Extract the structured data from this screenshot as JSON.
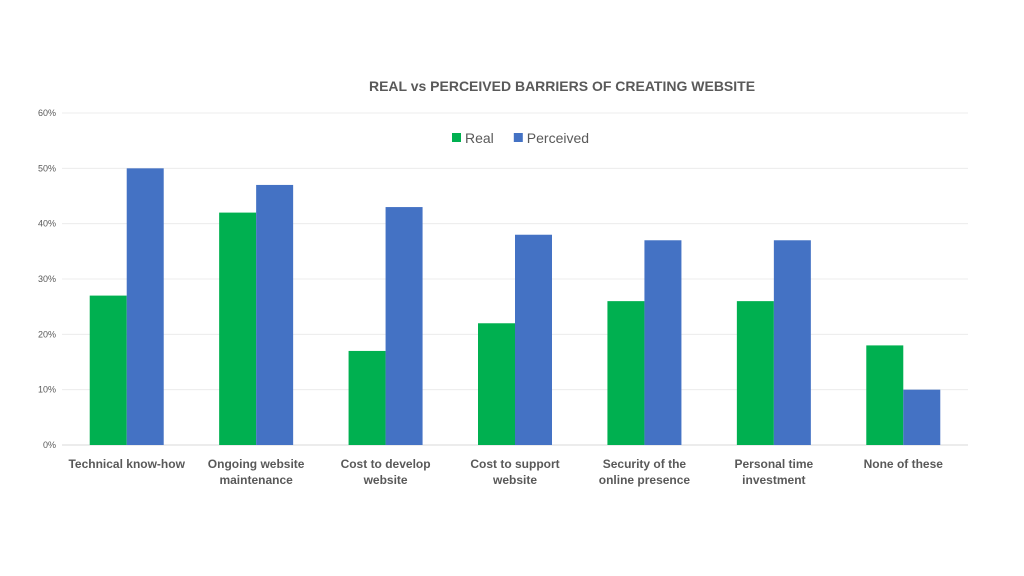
{
  "chart_data": {
    "type": "bar",
    "title": "REAL vs PERCEIVED BARRIERS OF CREATING WEBSITE",
    "xlabel": "",
    "ylabel": "",
    "ylim": [
      0,
      60
    ],
    "yticks": [
      "0%",
      "10%",
      "20%",
      "30%",
      "40%",
      "50%",
      "60%"
    ],
    "grid": true,
    "legend_position": "top-center",
    "categories": [
      [
        "Technical know-how"
      ],
      [
        "Ongoing website",
        "maintenance"
      ],
      [
        "Cost to develop",
        "website"
      ],
      [
        "Cost to support",
        "website"
      ],
      [
        "Security of the",
        "online presence"
      ],
      [
        "Personal time",
        "investment"
      ],
      [
        "None of these"
      ]
    ],
    "series": [
      {
        "name": "Real",
        "color": "#00b050",
        "values": [
          27,
          42,
          17,
          22,
          26,
          26,
          18
        ]
      },
      {
        "name": "Perceived",
        "color": "#4472c4",
        "values": [
          50,
          47,
          43,
          38,
          37,
          37,
          10
        ]
      }
    ]
  }
}
